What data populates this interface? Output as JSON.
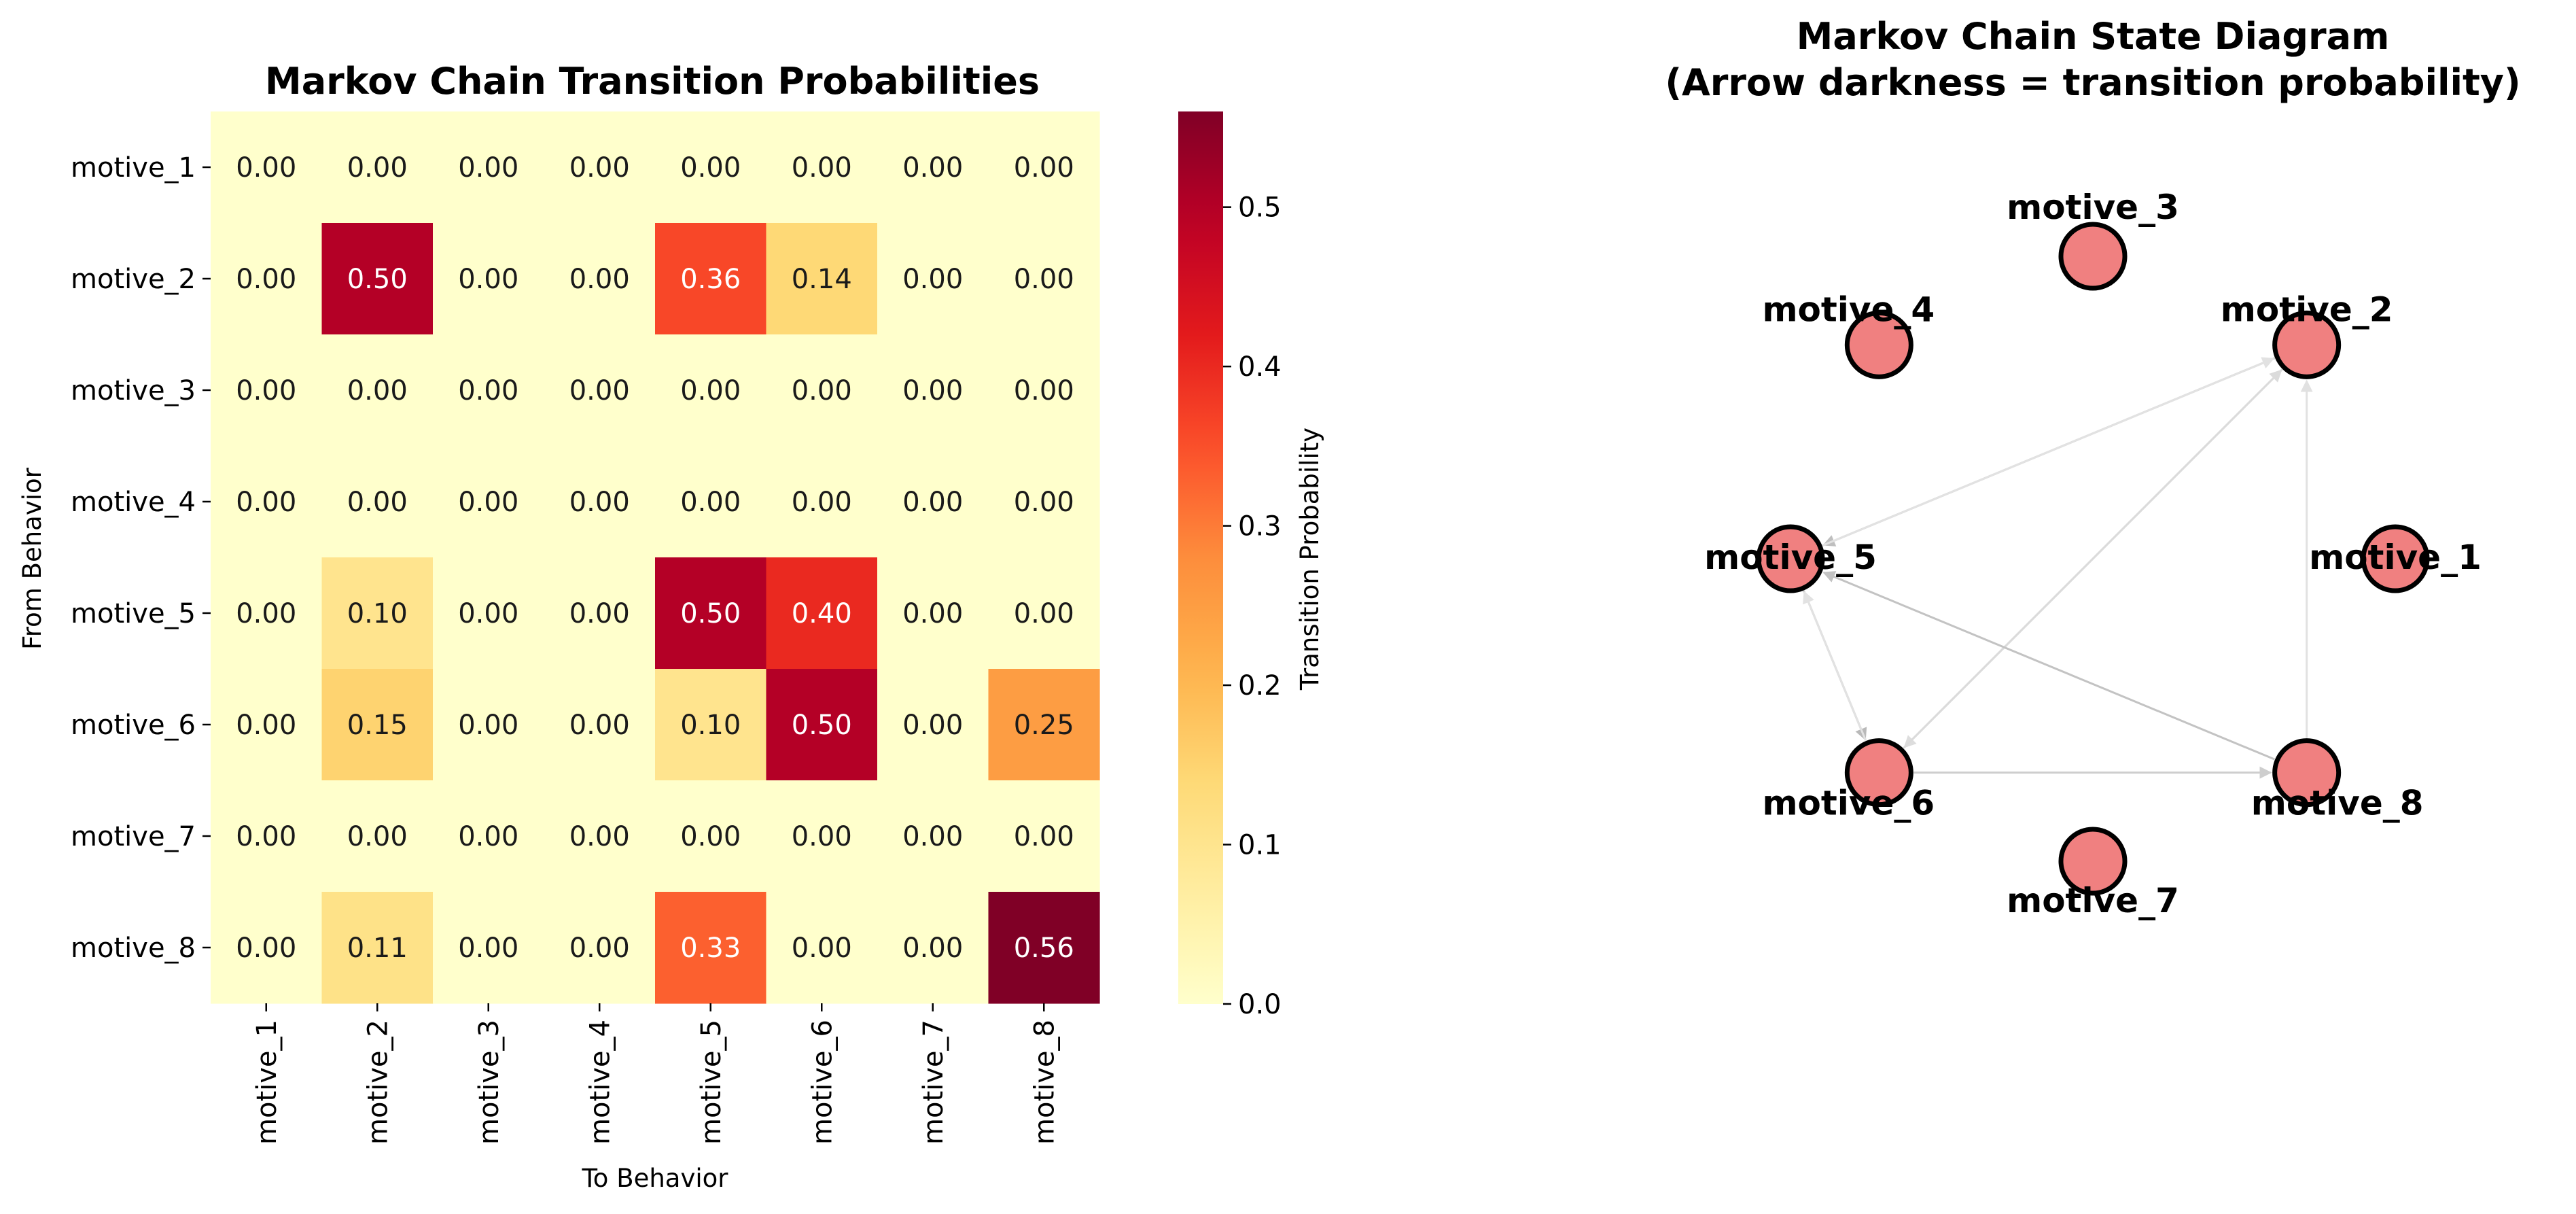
{
  "chart_data": [
    {
      "type": "heatmap",
      "title": "Markov Chain Transition Probabilities",
      "xlabel": "To Behavior",
      "ylabel": "From Behavior",
      "x_categories": [
        "motive_1",
        "motive_2",
        "motive_3",
        "motive_4",
        "motive_5",
        "motive_6",
        "motive_7",
        "motive_8"
      ],
      "y_categories": [
        "motive_1",
        "motive_2",
        "motive_3",
        "motive_4",
        "motive_5",
        "motive_6",
        "motive_7",
        "motive_8"
      ],
      "values": [
        [
          0.0,
          0.0,
          0.0,
          0.0,
          0.0,
          0.0,
          0.0,
          0.0
        ],
        [
          0.0,
          0.5,
          0.0,
          0.0,
          0.36,
          0.14,
          0.0,
          0.0
        ],
        [
          0.0,
          0.0,
          0.0,
          0.0,
          0.0,
          0.0,
          0.0,
          0.0
        ],
        [
          0.0,
          0.0,
          0.0,
          0.0,
          0.0,
          0.0,
          0.0,
          0.0
        ],
        [
          0.0,
          0.1,
          0.0,
          0.0,
          0.5,
          0.4,
          0.0,
          0.0
        ],
        [
          0.0,
          0.15,
          0.0,
          0.0,
          0.1,
          0.5,
          0.0,
          0.25
        ],
        [
          0.0,
          0.0,
          0.0,
          0.0,
          0.0,
          0.0,
          0.0,
          0.0
        ],
        [
          0.0,
          0.11,
          0.0,
          0.0,
          0.33,
          0.0,
          0.0,
          0.56
        ]
      ],
      "colorbar": {
        "label": "Transition Probability",
        "range": [
          0,
          0.56
        ],
        "ticks": [
          0.0,
          0.1,
          0.2,
          0.3,
          0.4,
          0.5
        ],
        "colormap": "YlOrRd"
      }
    },
    {
      "type": "diagram",
      "title": "Markov Chain State Diagram",
      "subtitle": "(Arrow darkness = transition probability)",
      "node_color": "#f08080",
      "nodes": [
        "motive_1",
        "motive_2",
        "motive_3",
        "motive_4",
        "motive_5",
        "motive_6",
        "motive_7",
        "motive_8"
      ],
      "edges": [
        {
          "from": "motive_2",
          "to": "motive_5",
          "weight": 0.36
        },
        {
          "from": "motive_2",
          "to": "motive_6",
          "weight": 0.14
        },
        {
          "from": "motive_5",
          "to": "motive_2",
          "weight": 0.1
        },
        {
          "from": "motive_5",
          "to": "motive_6",
          "weight": 0.4
        },
        {
          "from": "motive_6",
          "to": "motive_2",
          "weight": 0.15
        },
        {
          "from": "motive_6",
          "to": "motive_5",
          "weight": 0.1
        },
        {
          "from": "motive_6",
          "to": "motive_8",
          "weight": 0.25
        },
        {
          "from": "motive_8",
          "to": "motive_2",
          "weight": 0.11
        },
        {
          "from": "motive_8",
          "to": "motive_5",
          "weight": 0.33
        }
      ]
    }
  ]
}
